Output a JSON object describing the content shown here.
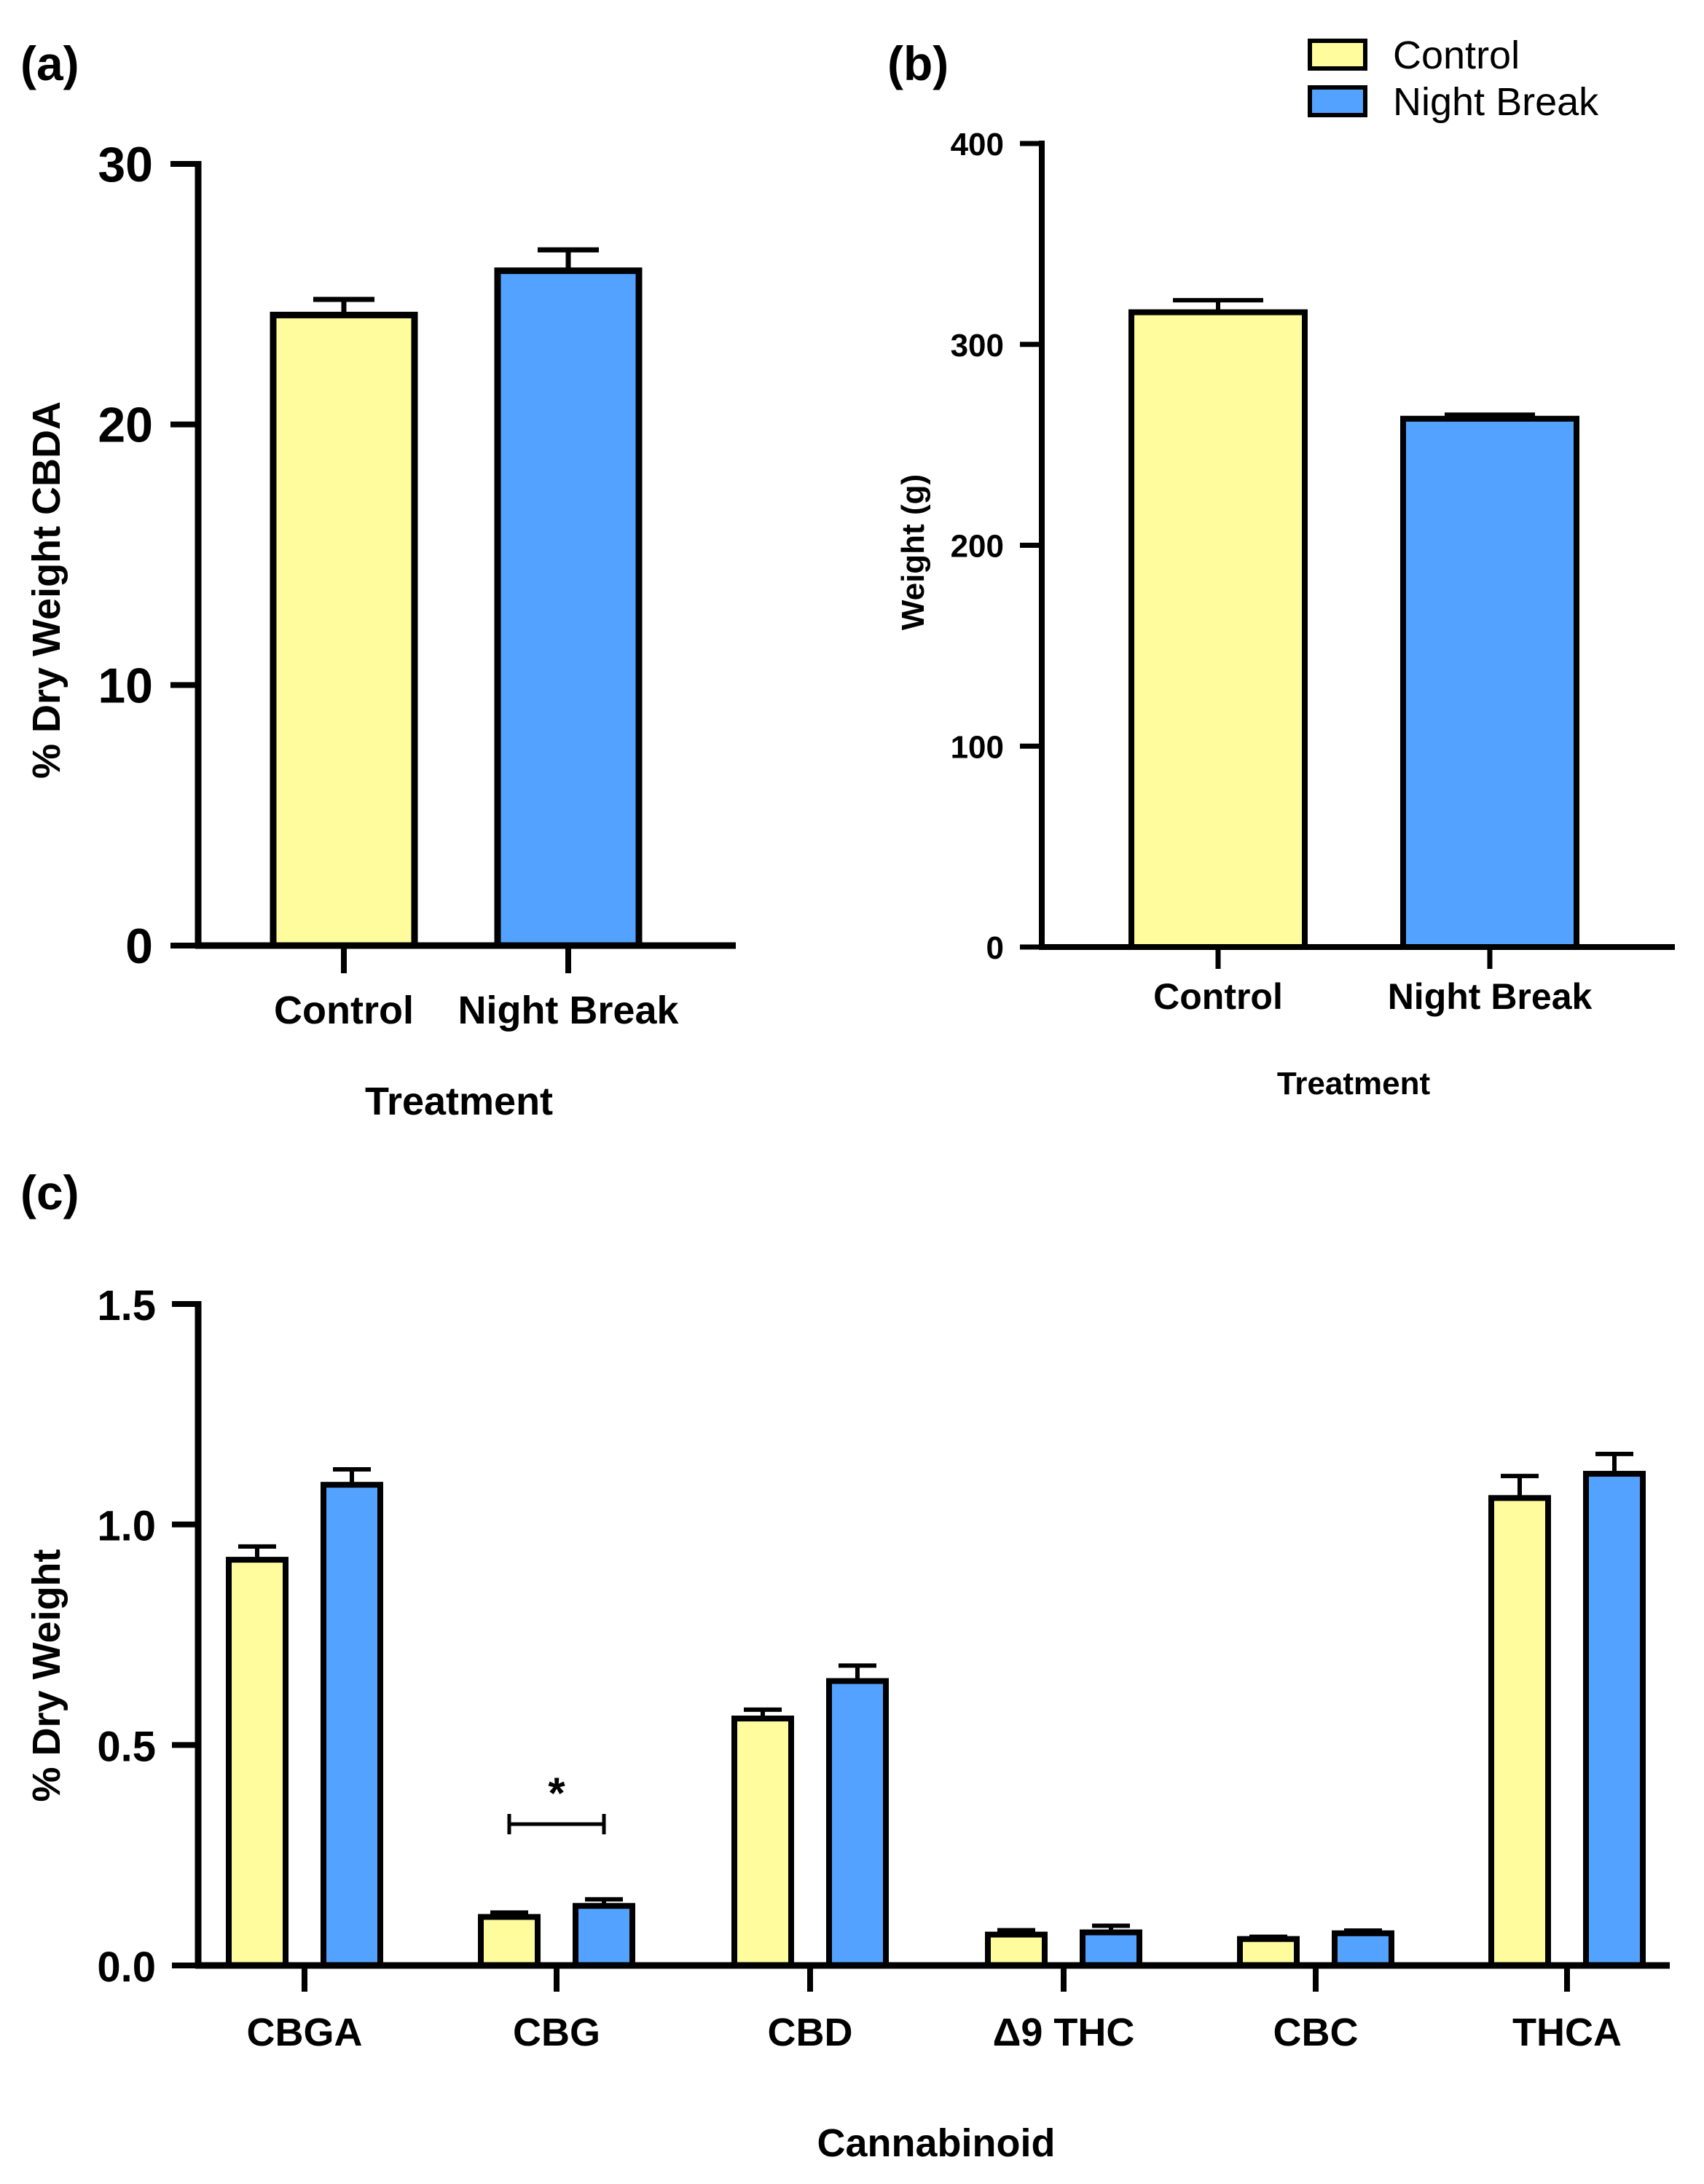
{
  "colors": {
    "control": "#FFFC9E",
    "night_break": "#54A2FF",
    "stroke": "#000000"
  },
  "legend": {
    "placement": "top-right",
    "items": [
      {
        "label": "Control",
        "color": "#FFFC9E"
      },
      {
        "label": "Night Break",
        "color": "#54A2FF"
      }
    ]
  },
  "chart_data": [
    {
      "panel": "(a)",
      "type": "bar",
      "categories": [
        "Control",
        "Night Break"
      ],
      "values": [
        24.2,
        25.9
      ],
      "errors": [
        0.6,
        0.8
      ],
      "colors": [
        "#FFFC9E",
        "#54A2FF"
      ],
      "xlabel": "Treatment",
      "ylabel": "% Dry  Weight CBDA",
      "ylim": [
        0,
        30
      ],
      "yticks": [
        0,
        10,
        20,
        30
      ],
      "ytick_labels": [
        "0",
        "10",
        "20",
        "30"
      ]
    },
    {
      "panel": "(b)",
      "type": "bar",
      "categories": [
        "Control",
        "Night Break"
      ],
      "values": [
        316,
        263
      ],
      "errors": [
        6,
        2
      ],
      "colors": [
        "#FFFC9E",
        "#54A2FF"
      ],
      "xlabel": "Treatment",
      "ylabel": "Weight (g)",
      "ylim": [
        0,
        400
      ],
      "yticks": [
        0,
        100,
        200,
        300,
        400
      ],
      "ytick_labels": [
        "0",
        "100",
        "200",
        "300",
        "400"
      ]
    },
    {
      "panel": "(c)",
      "type": "bar",
      "categories": [
        "CBGA",
        "CBG",
        "CBD",
        "Δ9 THC",
        "CBC",
        "THCA"
      ],
      "series": [
        {
          "name": "Control",
          "values": [
            0.92,
            0.11,
            0.56,
            0.07,
            0.06,
            1.06
          ],
          "errors": [
            0.03,
            0.01,
            0.02,
            0.01,
            0.005,
            0.05
          ]
        },
        {
          "name": "Night Break",
          "values": [
            1.09,
            0.135,
            0.645,
            0.075,
            0.073,
            1.115
          ],
          "errors": [
            0.035,
            0.015,
            0.035,
            0.015,
            0.006,
            0.045
          ]
        }
      ],
      "xlabel": "Cannabinoid",
      "ylabel": "% Dry  Weight",
      "ylim": [
        0,
        1.5
      ],
      "yticks": [
        0,
        0.5,
        1,
        1.5
      ],
      "ytick_labels": [
        "0.0",
        "0.5",
        "1.0",
        "1.5"
      ],
      "annotations": [
        {
          "category": "CBG",
          "text": "*"
        }
      ]
    }
  ]
}
